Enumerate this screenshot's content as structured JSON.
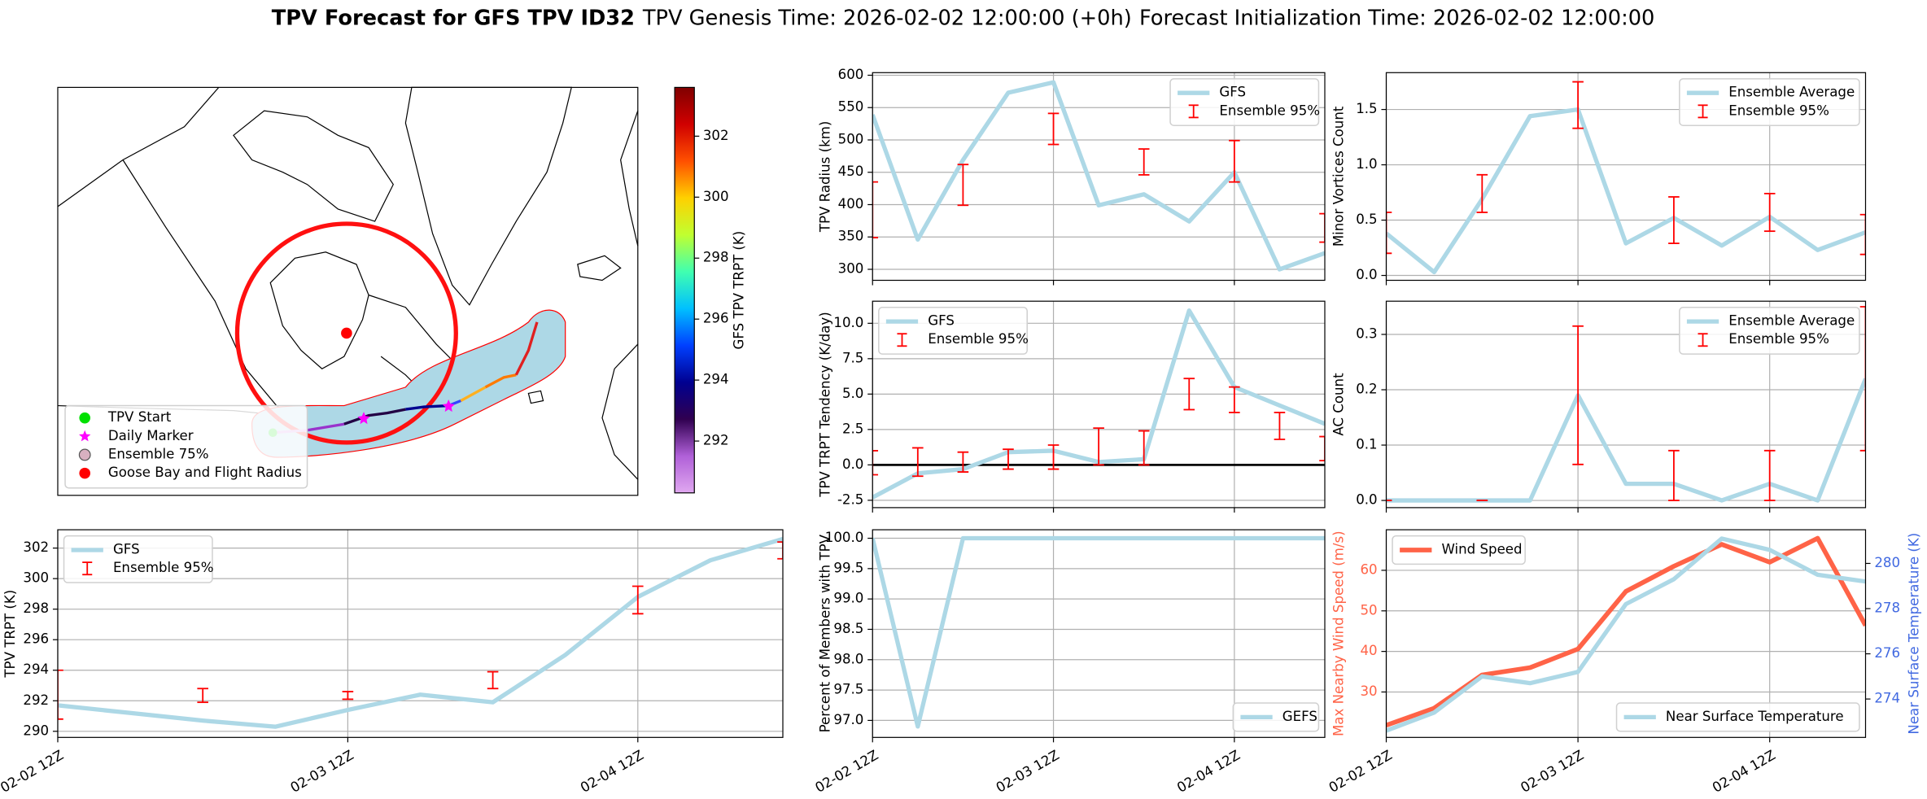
{
  "title": "TPV Forecast for GFS TPV ID32",
  "subtitle": [
    "TPV Genesis Time: 2026-02-02 12:00:00 (+0h)",
    "Forecast Initialization Time: 2026-02-02 12:00:00"
  ],
  "chart_data": [
    {
      "type": "map",
      "legend": [
        {
          "name": "TPV Start",
          "color": "#00e000",
          "marker": "circle"
        },
        {
          "name": "Daily Marker",
          "color": "#ff00ff",
          "marker": "star"
        },
        {
          "name": "Ensemble 75%",
          "color": "#d8b0c0",
          "marker": "ring"
        },
        {
          "name": "Goose Bay and Flight Radius",
          "color": "#ff0000",
          "marker": "circle"
        }
      ],
      "colorbar": {
        "label": "GFS TPV TRPT (K)",
        "clim": [
          290.3,
          303.6
        ],
        "ticks": [
          292,
          294,
          296,
          298,
          300,
          302
        ],
        "colors": [
          "#e0a8f0",
          "#b060d8",
          "#300050",
          "#000090",
          "#0040ff",
          "#00c0ff",
          "#40ffb0",
          "#c0ff30",
          "#ffd000",
          "#ff5000",
          "#d00000",
          "#800000"
        ]
      }
    },
    {
      "type": "line",
      "ylabel": "TPV Radius (km)",
      "x": [
        0,
        6,
        12,
        18,
        24,
        30,
        36,
        42,
        48,
        54,
        60
      ],
      "xlim": [
        0,
        60
      ],
      "xticks": [
        0,
        24,
        48
      ],
      "ylim": [
        283,
        604
      ],
      "yticks": [
        300,
        350,
        400,
        450,
        500,
        550,
        600
      ],
      "grid": true,
      "legend": "upper right",
      "series": [
        {
          "name": "GFS",
          "color": "#add8e6",
          "values": [
            539,
            346,
            469,
            573,
            589,
            399,
            416,
            374,
            450,
            300,
            325
          ]
        }
      ],
      "errorbars": {
        "name": "Ensemble 95%",
        "color": "#ff0000",
        "x": [
          0,
          12,
          24,
          36,
          48,
          60
        ],
        "values": [
          392,
          430.5,
          517,
          466,
          467,
          364
        ],
        "errors": [
          43,
          31.5,
          24,
          20,
          32,
          22
        ]
      }
    },
    {
      "type": "line",
      "ylabel": "Minor Vortices Count",
      "x": [
        0,
        6,
        12,
        18,
        24,
        30,
        36,
        42,
        48,
        54,
        60
      ],
      "xlim": [
        0,
        60
      ],
      "xticks": [
        0,
        24,
        48
      ],
      "ylim": [
        -0.044,
        1.833
      ],
      "yticks": [
        {
          "value": 0,
          "label": "0.0"
        },
        0.5,
        {
          "value": 1,
          "label": "1.0"
        },
        1.5
      ],
      "grid": true,
      "legend": "upper right",
      "series": [
        {
          "name": "Ensemble Average",
          "color": "#add8e6",
          "values": [
            0.38,
            0.03,
            0.69,
            1.44,
            1.5,
            0.29,
            0.52,
            0.27,
            0.53,
            0.23,
            0.39
          ]
        }
      ],
      "errorbars": {
        "name": "Ensemble 95%",
        "color": "#ff0000",
        "x": [
          0,
          12,
          24,
          36,
          48,
          60
        ],
        "values": [
          0.385,
          0.74,
          1.54,
          0.5,
          0.57,
          0.37
        ],
        "errors": [
          0.185,
          0.17,
          0.21,
          0.21,
          0.17,
          0.18
        ]
      }
    },
    {
      "type": "line",
      "ylabel": "TPV TRPT Tendency (K/day)",
      "x": [
        0,
        6,
        12,
        18,
        24,
        30,
        36,
        42,
        48,
        54,
        60
      ],
      "xlim": [
        0,
        60
      ],
      "xticks": [
        0,
        24,
        48
      ],
      "ylim": [
        -3.02,
        11.56
      ],
      "yticks": [
        -2.5,
        {
          "value": 0,
          "label": "0.0"
        },
        2.5,
        {
          "value": 5,
          "label": "5.0"
        },
        7.5,
        {
          "value": 10,
          "label": "10.0"
        }
      ],
      "grid": true,
      "legend": "upper left",
      "hline": 0,
      "series": [
        {
          "name": "GFS",
          "color": "#add8e6",
          "values": [
            -2.3,
            -0.6,
            -0.3,
            0.9,
            1.0,
            0.2,
            0.4,
            10.9,
            5.5,
            4.2,
            2.9
          ]
        }
      ],
      "errorbars": {
        "name": "Ensemble 95%",
        "color": "#ff0000",
        "x": [
          0,
          6,
          12,
          18,
          24,
          30,
          36,
          42,
          48,
          54,
          60
        ],
        "values": [
          0.15,
          0.2,
          0.2,
          0.4,
          0.55,
          1.3,
          1.2,
          5.0,
          4.6,
          2.75,
          1.15
        ],
        "errors": [
          0.85,
          1.0,
          0.7,
          0.7,
          0.85,
          1.3,
          1.2,
          1.1,
          0.9,
          0.95,
          0.85
        ]
      }
    },
    {
      "type": "line",
      "ylabel": "AC Count",
      "x": [
        0,
        6,
        12,
        18,
        24,
        30,
        36,
        42,
        48,
        54,
        60
      ],
      "xlim": [
        0,
        60
      ],
      "xticks": [
        0,
        24,
        48
      ],
      "ylim": [
        -0.013,
        0.36
      ],
      "yticks": [
        {
          "value": 0,
          "label": "0.0"
        },
        0.1,
        0.2,
        0.3
      ],
      "grid": true,
      "legend": "upper right",
      "series": [
        {
          "name": "Ensemble Average",
          "color": "#add8e6",
          "values": [
            0,
            0,
            0,
            0,
            0.19,
            0.03,
            0.03,
            0,
            0.03,
            0,
            0.22
          ]
        }
      ],
      "errorbars": {
        "name": "Ensemble 95%",
        "color": "#ff0000",
        "x": [
          0,
          12,
          24,
          36,
          48,
          60
        ],
        "values": [
          0,
          0,
          0.19,
          0.045,
          0.045,
          0.22
        ],
        "errors": [
          0,
          0,
          0.125,
          0.045,
          0.045,
          0.13
        ]
      }
    },
    {
      "type": "line",
      "ylabel": "TPV TRPT (K)",
      "x": [
        0,
        6,
        12,
        18,
        24,
        30,
        36,
        42,
        48,
        54,
        60
      ],
      "xlim": [
        0,
        60
      ],
      "xticks": [
        {
          "value": 0,
          "label": "02-02 12Z"
        },
        {
          "value": 24,
          "label": "02-03 12Z"
        },
        {
          "value": 48,
          "label": "02-04 12Z"
        }
      ],
      "ylim": [
        289.6,
        303.2
      ],
      "yticks": [
        290,
        292,
        294,
        296,
        298,
        300,
        302
      ],
      "grid": true,
      "legend": "upper left",
      "series": [
        {
          "name": "GFS",
          "color": "#add8e6",
          "values": [
            291.7,
            291.2,
            290.7,
            290.3,
            291.4,
            292.4,
            291.9,
            295.0,
            298.8,
            301.2,
            302.6
          ]
        }
      ],
      "errorbars": {
        "name": "Ensemble 95%",
        "color": "#ff0000",
        "x": [
          0,
          12,
          24,
          36,
          48,
          60
        ],
        "values": [
          292.4,
          292.35,
          292.35,
          293.35,
          298.6,
          301.85
        ],
        "errors": [
          1.6,
          0.45,
          0.25,
          0.55,
          0.9,
          0.55
        ]
      }
    },
    {
      "type": "line",
      "ylabel": "Percent of Members with TPV",
      "x": [
        0,
        6,
        12,
        18,
        24,
        30,
        36,
        42,
        48,
        54,
        60
      ],
      "xlim": [
        0,
        60
      ],
      "xticks": [
        {
          "value": 0,
          "label": "02-02 12Z"
        },
        {
          "value": 24,
          "label": "02-03 12Z"
        },
        {
          "value": 48,
          "label": "02-04 12Z"
        }
      ],
      "ylim": [
        96.72,
        100.14
      ],
      "yticks": [
        {
          "value": 97,
          "label": "97.0"
        },
        97.5,
        {
          "value": 98,
          "label": "98.0"
        },
        98.5,
        {
          "value": 99,
          "label": "99.0"
        },
        99.5,
        {
          "value": 100,
          "label": "100.0"
        }
      ],
      "grid": true,
      "legend": "lower right",
      "series": [
        {
          "name": "GEFS",
          "color": "#add8e6",
          "values": [
            100,
            96.9,
            100,
            100,
            100,
            100,
            100,
            100,
            100,
            100,
            100
          ]
        }
      ]
    },
    {
      "type": "line",
      "ylabel": "Max Nearby Wind Speed (m/s)",
      "y2label": "Near Surface Temperature (K)",
      "ycolor": "#ff6347",
      "y2color": "#4169e1",
      "x": [
        0,
        6,
        12,
        18,
        24,
        30,
        36,
        42,
        48,
        54,
        60
      ],
      "xlim": [
        0,
        60
      ],
      "xticks": [
        {
          "value": 0,
          "label": "02-02 12Z"
        },
        {
          "value": 24,
          "label": "02-03 12Z"
        },
        {
          "value": 48,
          "label": "02-04 12Z"
        }
      ],
      "ylim": [
        18.8,
        70
      ],
      "yticks": [
        30,
        40,
        50,
        60
      ],
      "y2lim": [
        272.3,
        281.49
      ],
      "y2ticks": [
        274,
        276,
        278,
        280
      ],
      "grid": true,
      "series": [
        {
          "name": "Wind Speed",
          "color": "#ff6347",
          "legend": "upper left",
          "values": [
            21.8,
            26,
            34.2,
            36,
            40.6,
            54.8,
            61,
            66.4,
            62,
            67.9,
            46.4
          ]
        },
        {
          "name": "Near Surface Temperature",
          "color": "#add8e6",
          "axis": "y2",
          "legend": "lower right",
          "values": [
            272.6,
            273.4,
            275.0,
            274.7,
            275.2,
            278.2,
            279.3,
            281.1,
            280.6,
            279.5,
            279.2
          ]
        }
      ]
    }
  ]
}
